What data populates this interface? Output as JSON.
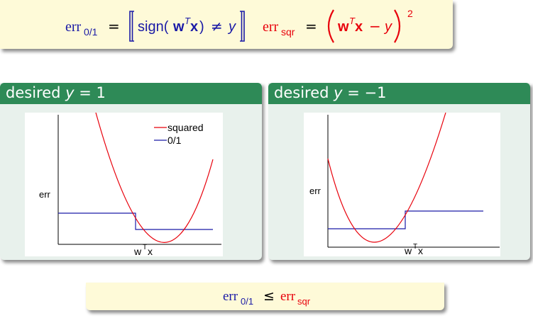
{
  "formula": {
    "err01_lhs": "err",
    "err01_sub": "0/1",
    "equals": "=",
    "sign_text": "sign(",
    "w": "w",
    "T": "T",
    "x": "x",
    "close_paren": ")",
    "neq": "≠",
    "y": "y",
    "errsqr_lhs": "err",
    "errsqr_sub": "sqr",
    "minus": "−",
    "square": "2",
    "colors": {
      "red": "#e8000b",
      "blue": "#1a1aa6",
      "text": "#000000"
    }
  },
  "panels": [
    {
      "title_prefix": "desired ",
      "title_var": "y",
      "title_eq": " = 1",
      "ylabel": "err",
      "xlabel_w": "w",
      "xlabel_T": "T",
      "xlabel_x": "x",
      "legend": [
        {
          "label": "squared",
          "color": "#e8000b"
        },
        {
          "label": "0/1",
          "color": "#1a1aa6"
        }
      ]
    },
    {
      "title_prefix": "desired ",
      "title_var": "y",
      "title_eq": " = −1",
      "ylabel": "err",
      "xlabel_w": "w",
      "xlabel_T": "T",
      "xlabel_x": "x",
      "legend": []
    }
  ],
  "inequality": {
    "lhs": "err",
    "lhs_sub": "0/1",
    "leq": "≤",
    "rhs": "err",
    "rhs_sub": "sqr"
  },
  "colors": {
    "header_green": "#2e8a57",
    "panel_bg": "#e8f1ec",
    "formula_bg": "#fefad8",
    "squared_curve": "#e8000b",
    "zero_one_curve": "#1a1aa6"
  }
}
